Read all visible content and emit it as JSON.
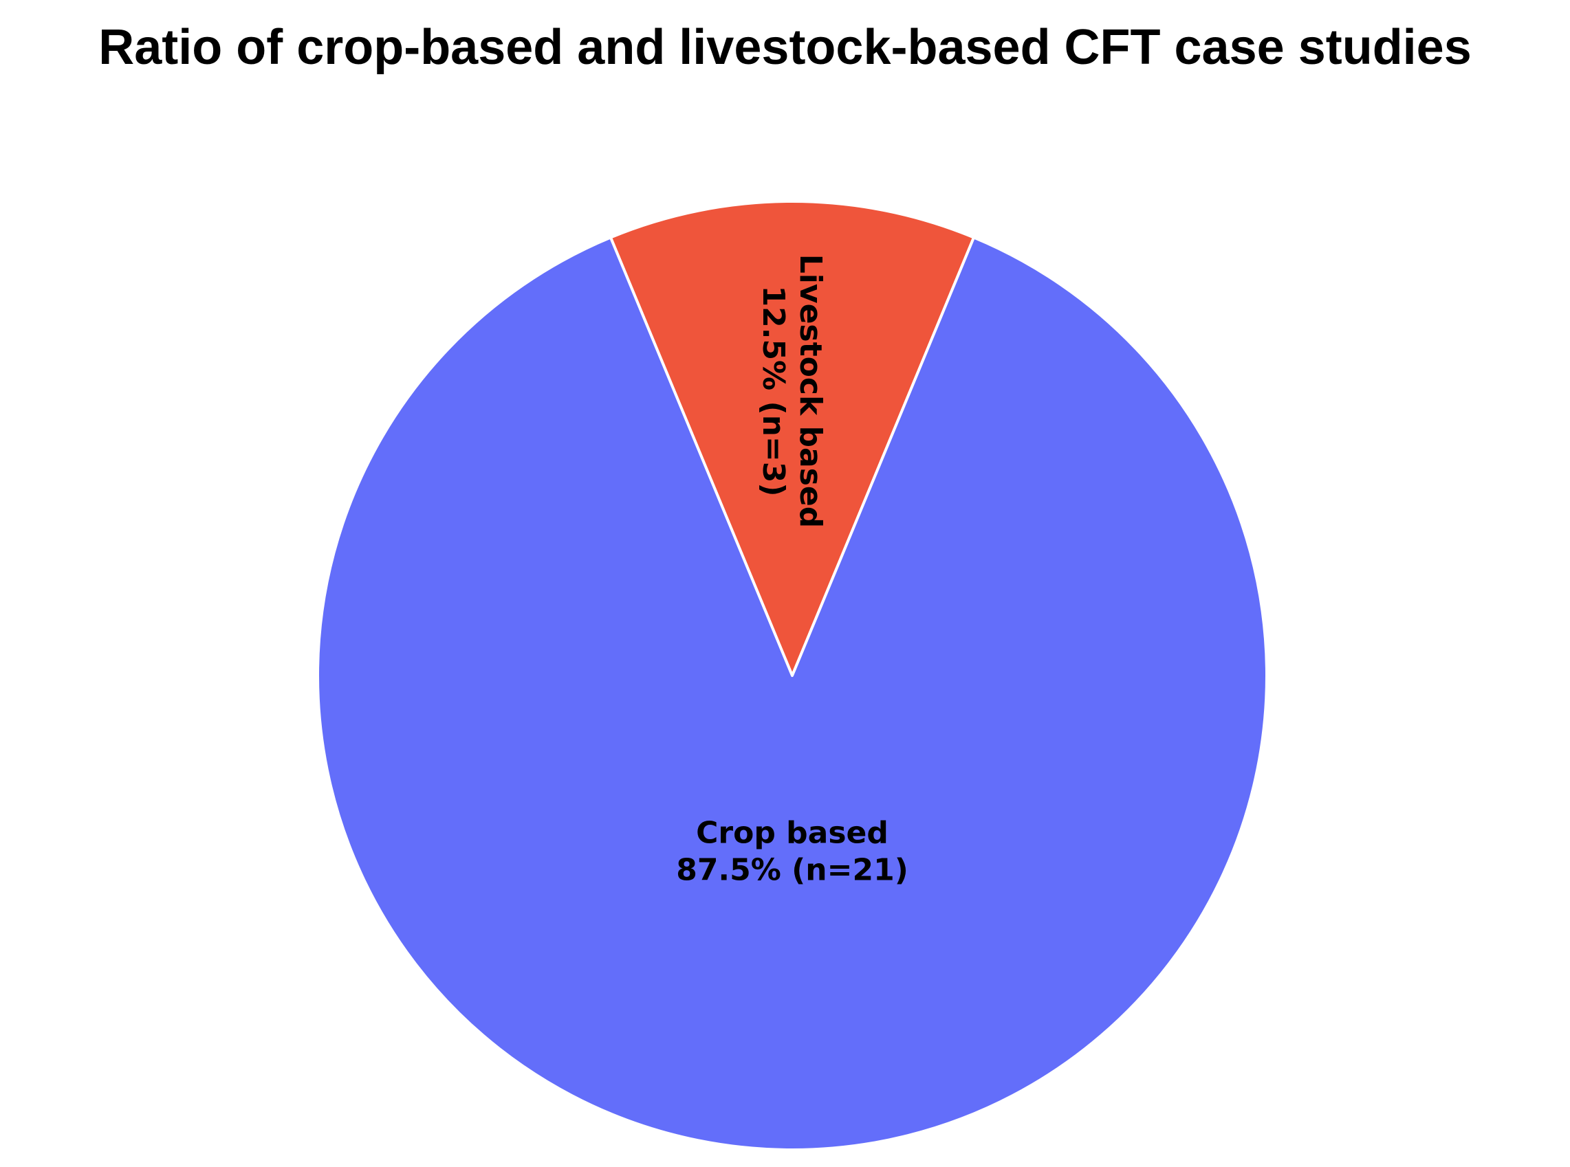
{
  "chart_data": {
    "type": "pie",
    "title": "Ratio of crop-based and livestock-based CFT case studies",
    "slices": [
      {
        "label": "Livestock based",
        "percent_label": "12.5% (n=3)",
        "value": 3,
        "percent": 12.5,
        "color": "#EF553B"
      },
      {
        "label": "Crop based",
        "percent_label": "87.5% (n=21)",
        "value": 21,
        "percent": 87.5,
        "color": "#636EFA"
      }
    ]
  }
}
